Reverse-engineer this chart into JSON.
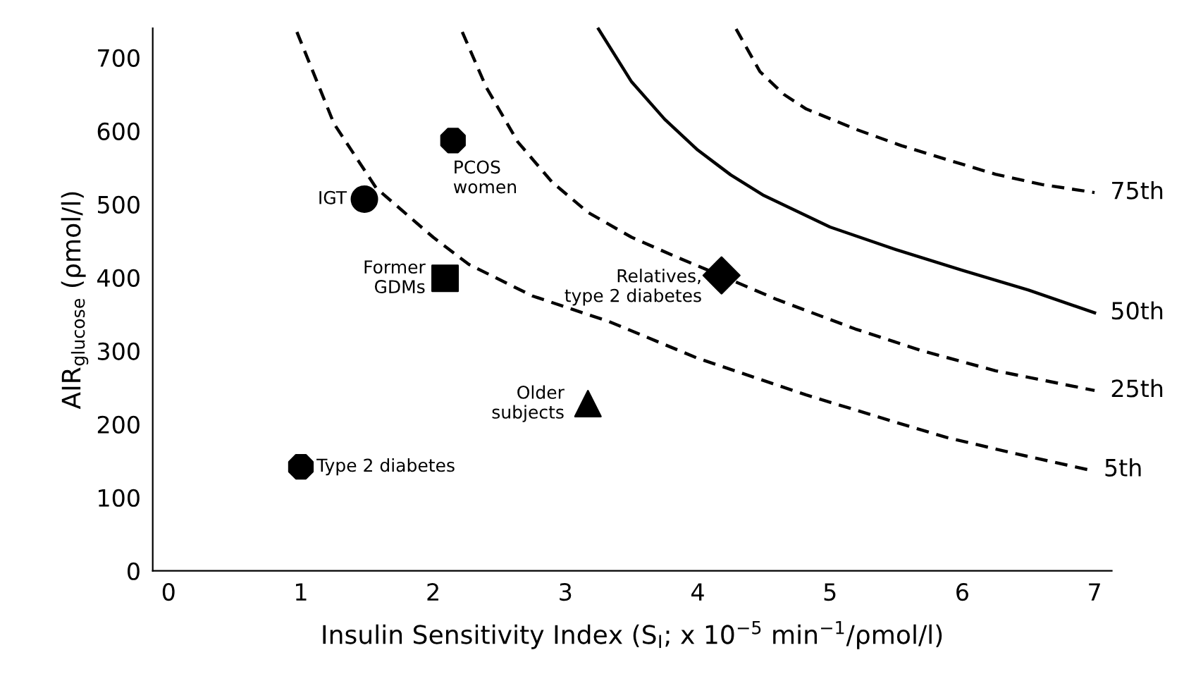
{
  "chart_data": {
    "type": "line",
    "xlabel": "Insulin Sensitivity Index (S$_{I}$; x 10$^{−5}$ min$^{−1}$/ρmol/l)",
    "ylabel": "AIR$_{glucose}$ (ρmol/l)",
    "xlim": [
      -0.12,
      7.13
    ],
    "ylim": [
      0,
      740
    ],
    "xticks": [
      0,
      1,
      2,
      3,
      4,
      5,
      6,
      7
    ],
    "yticks": [
      0,
      100,
      200,
      300,
      400,
      500,
      600,
      700
    ],
    "series": [
      {
        "name": "5th",
        "line_style": "dashed",
        "color": "#000000",
        "x": [
          0.97,
          1.25,
          1.57,
          2.0,
          2.27,
          2.75,
          3.33,
          4.0,
          4.82,
          5.4,
          5.88,
          6.4,
          6.95
        ],
        "values": [
          735,
          610,
          522,
          455,
          418,
          375,
          340,
          290,
          240,
          208,
          182,
          160,
          138
        ]
      },
      {
        "name": "25th",
        "line_style": "dashed",
        "color": "#000000",
        "x": [
          2.22,
          2.4,
          2.64,
          2.9,
          3.17,
          3.5,
          3.84,
          4.12,
          4.6,
          5.19,
          5.7,
          6.25,
          7.0
        ],
        "values": [
          735,
          660,
          585,
          530,
          489,
          455,
          428,
          407,
          370,
          330,
          300,
          273,
          246
        ]
      },
      {
        "name": "50th",
        "line_style": "solid",
        "color": "#000000",
        "x": [
          3.25,
          3.5,
          3.75,
          4.0,
          4.25,
          4.5,
          5.0,
          5.5,
          6.0,
          6.5,
          7.0
        ],
        "values": [
          739,
          667,
          616,
          574,
          540,
          512,
          469,
          438,
          410,
          383,
          352
        ]
      },
      {
        "name": "75th",
        "line_style": "dashed",
        "color": "#000000",
        "x": [
          4.29,
          4.47,
          4.65,
          4.82,
          5.2,
          5.54,
          5.9,
          6.25,
          6.6,
          7.0
        ],
        "values": [
          739,
          681,
          650,
          630,
          602,
          580,
          560,
          541,
          527,
          516
        ]
      },
      {
        "name": "Type 2 diabetes",
        "type": "scatter",
        "color": "#000000",
        "x": [
          1.0
        ],
        "values": [
          142
        ]
      },
      {
        "name": "IGT",
        "type": "scatter",
        "marker": "circle",
        "color": "#000000",
        "x": [
          1.48
        ],
        "values": [
          507
        ]
      },
      {
        "name": "PCOS\nwomen",
        "type": "scatter",
        "color": "#000000",
        "x": [
          2.15
        ],
        "values": [
          587
        ]
      },
      {
        "name": "Former\nGDMs",
        "type": "scatter",
        "marker": "square",
        "color": "#000000",
        "x": [
          2.09
        ],
        "values": [
          399
        ]
      },
      {
        "name": "Older\nsubjects",
        "type": "scatter",
        "marker": "triangle",
        "color": "#000000",
        "x": [
          3.17
        ],
        "values": [
          228
        ]
      },
      {
        "name": "Relatives,\ntype 2 diabetes",
        "type": "scatter",
        "marker": "diamond",
        "color": "#000000",
        "x": [
          4.18
        ],
        "values": [
          403
        ]
      }
    ]
  }
}
